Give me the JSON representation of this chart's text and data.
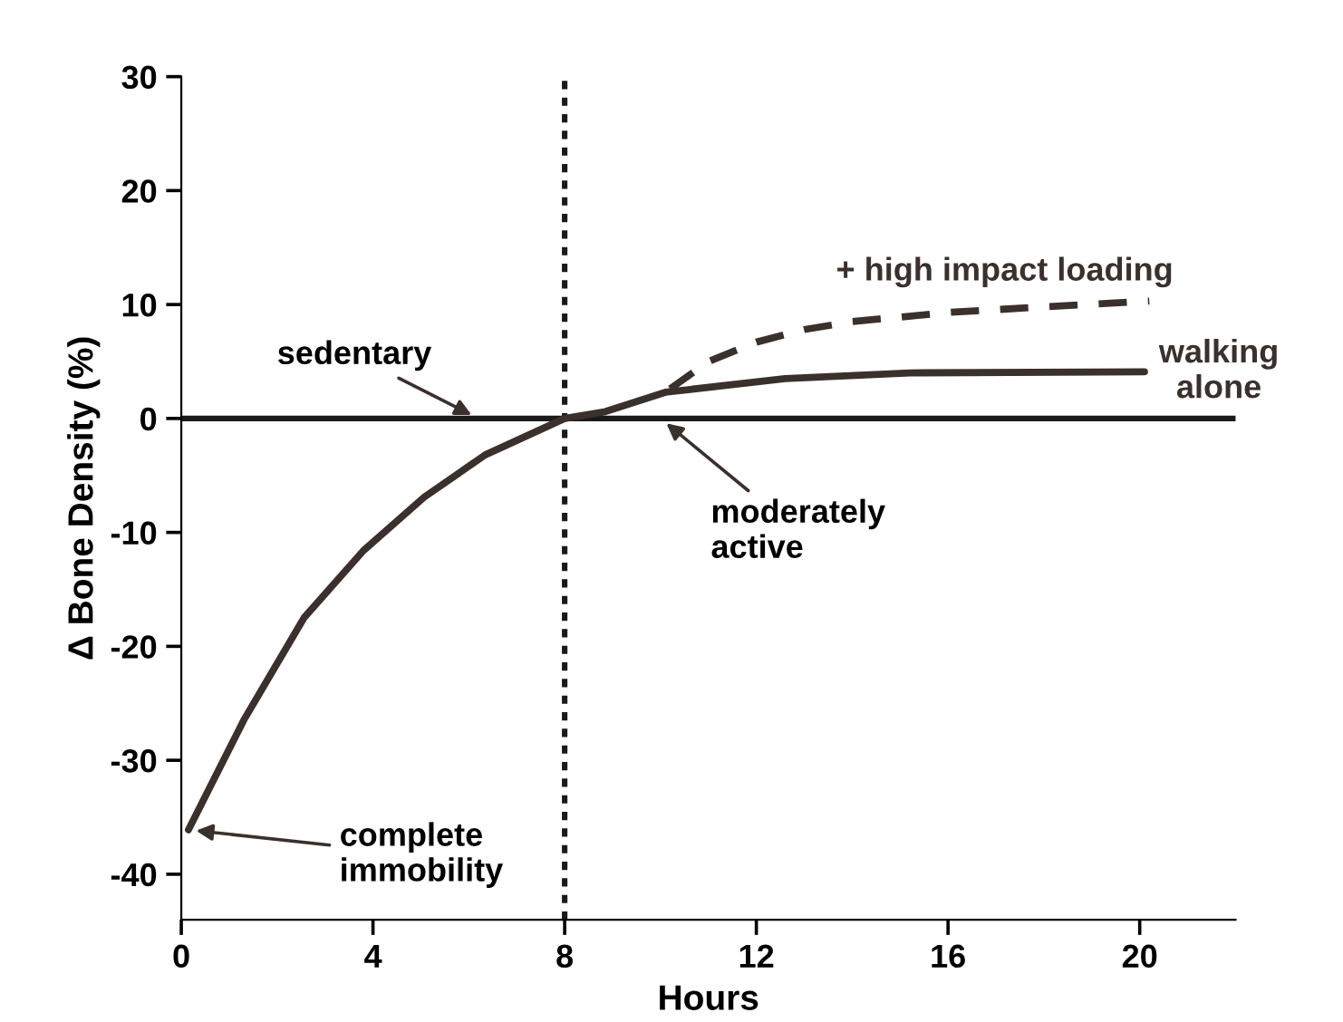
{
  "chart_data": {
    "type": "line",
    "xlabel": "Hours",
    "ylabel": "Δ Bone Density (%)",
    "xlim": [
      0,
      22
    ],
    "ylim": [
      -44,
      30
    ],
    "xticks": [
      0,
      4,
      8,
      12,
      16,
      20
    ],
    "yticks": [
      -40,
      -30,
      -20,
      -10,
      0,
      10,
      20,
      30
    ],
    "grid": false,
    "legend": false,
    "marker": "none",
    "series": [
      {
        "name": "walking alone",
        "color": "#3a302c",
        "line_style": "solid",
        "x": [
          0.15,
          1.3,
          2.56,
          3.8,
          5.07,
          6.34,
          8,
          8.85,
          10.1,
          12.6,
          15.2,
          20.1
        ],
        "values": [
          -36.1,
          -26.5,
          -17.5,
          -11.6,
          -6.9,
          -3.2,
          0,
          0.6,
          2.3,
          3.5,
          4.0,
          4.1
        ]
      },
      {
        "name": "+ high impact loading",
        "color": "#3a302c",
        "line_style": "dashed",
        "x": [
          10.2,
          11,
          12,
          13,
          14,
          16,
          18,
          20.2
        ],
        "values": [
          2.6,
          5,
          6.7,
          7.8,
          8.5,
          9.3,
          9.8,
          10.3
        ]
      }
    ],
    "ref_lines": [
      {
        "axis": "x",
        "value": 8,
        "line_style": "dotted",
        "color": "#1a1a1a"
      },
      {
        "axis": "y",
        "value": 0,
        "line_style": "solid",
        "color": "#1a1a1a"
      }
    ],
    "annotations": [
      {
        "text": "sedentary",
        "x": 6.2,
        "y": 0
      },
      {
        "text": "moderately\nactive",
        "x": 10,
        "y": 0
      },
      {
        "text": "complete\nimmobility",
        "x": 0.15,
        "y": -36.1
      }
    ]
  }
}
